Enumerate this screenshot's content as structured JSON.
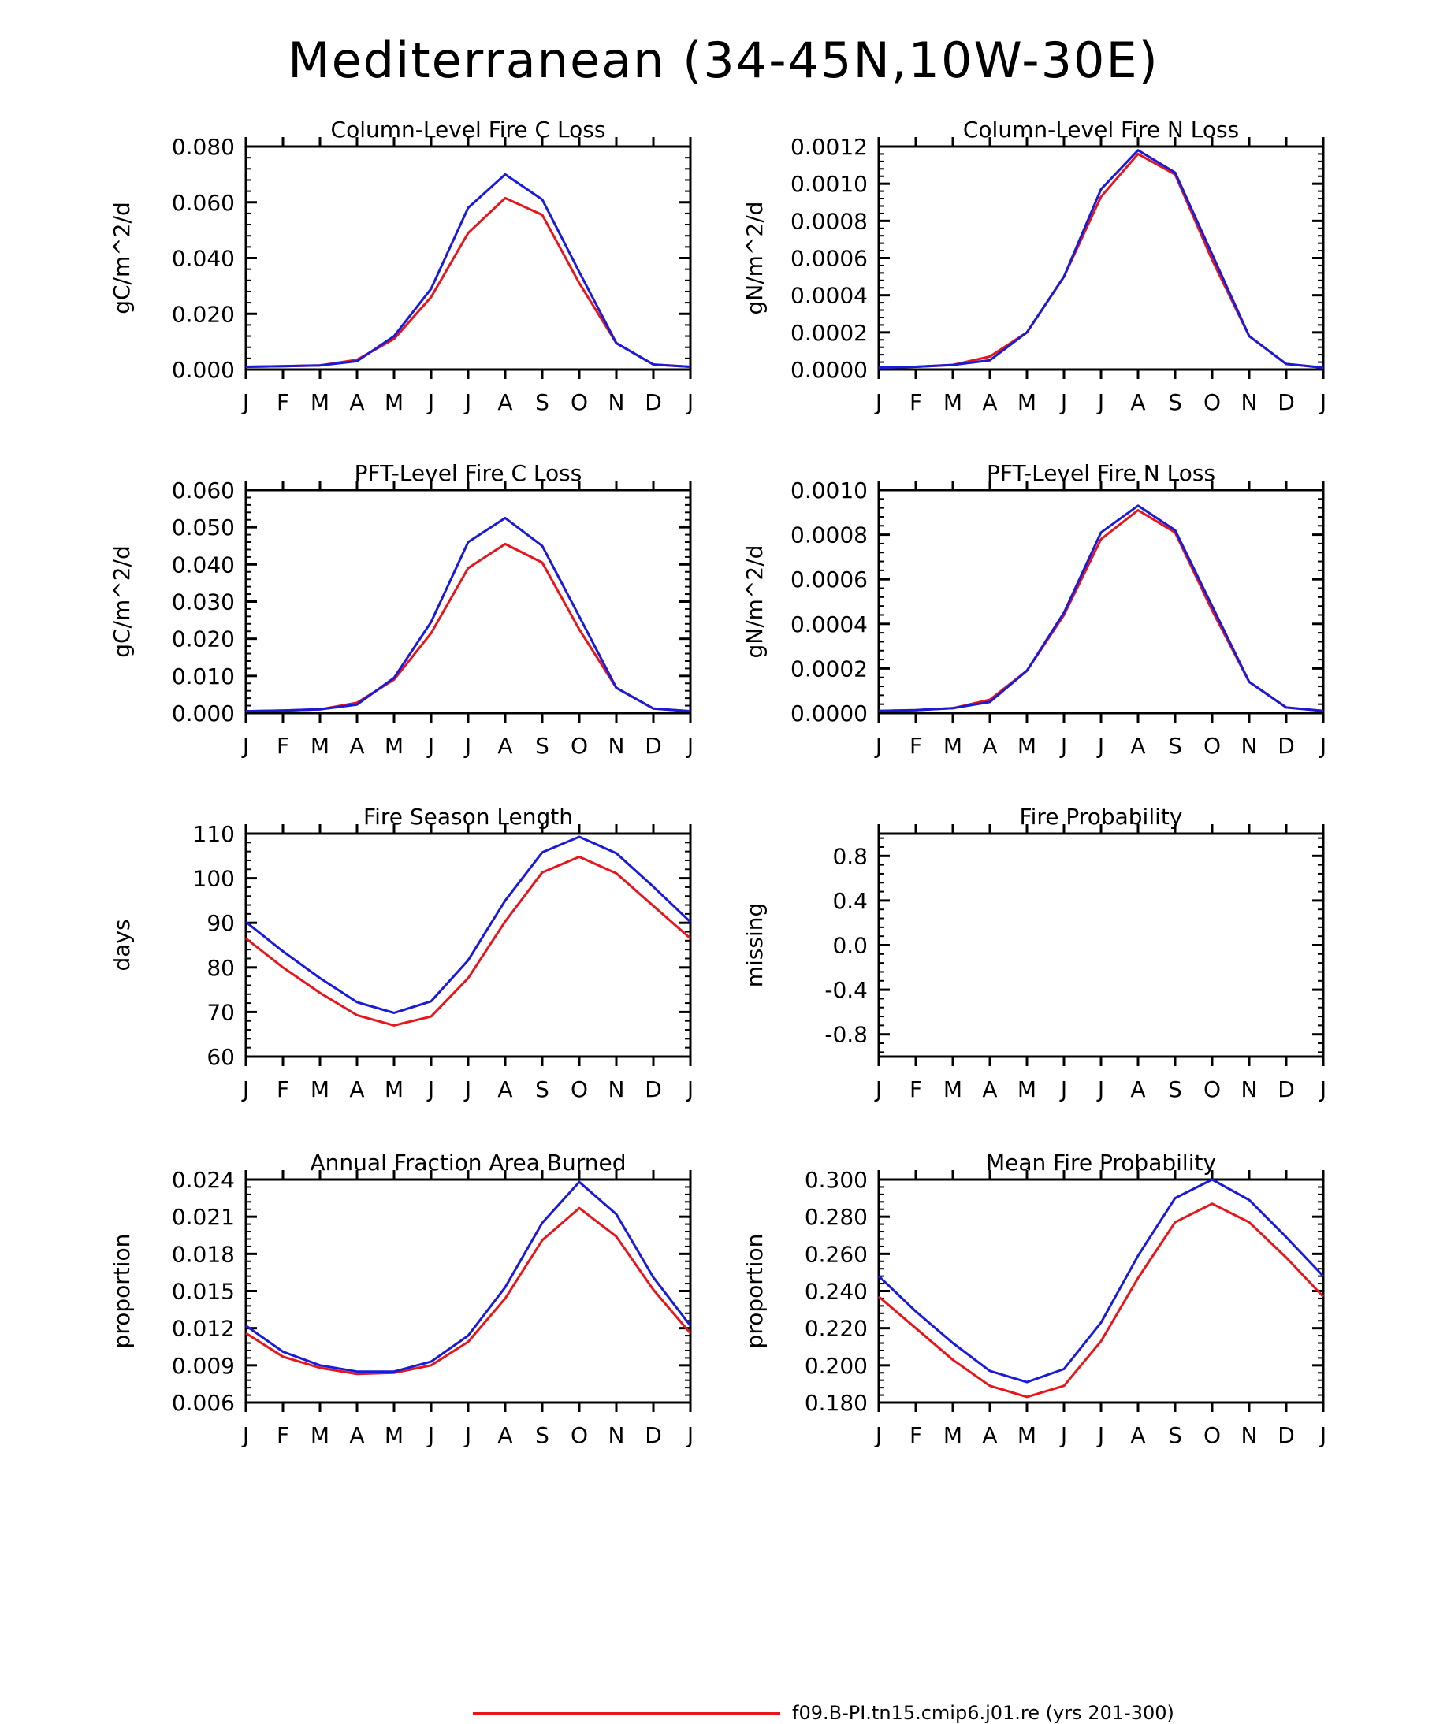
{
  "title": "Mediterranean (34-45N,10W-30E)",
  "colors": {
    "series1": "#e8161a",
    "series2": "#1a1adb",
    "axis": "#000000"
  },
  "legend": [
    {
      "label": "f09.B-PI.tn15.cmip6.j01.re (yrs 201-300)",
      "color": "#e8161a"
    }
  ],
  "chart_data": [
    {
      "type": "line",
      "title": "Column-Level Fire C Loss",
      "ylabel": "gC/m^2/d",
      "categories": [
        "J",
        "F",
        "M",
        "A",
        "M",
        "J",
        "J",
        "A",
        "S",
        "O",
        "N",
        "D",
        "J"
      ],
      "ylim": [
        0,
        0.08
      ],
      "yticks": [
        "0.000",
        "0.020",
        "0.040",
        "0.060",
        "0.080"
      ],
      "series": [
        {
          "values": [
            0.001,
            0.0012,
            0.0015,
            0.0035,
            0.011,
            0.026,
            0.049,
            0.0615,
            0.0555,
            0.031,
            0.0095,
            0.0018,
            0.001
          ]
        },
        {
          "values": [
            0.001,
            0.0012,
            0.0015,
            0.003,
            0.012,
            0.029,
            0.058,
            0.07,
            0.061,
            0.035,
            0.0095,
            0.0018,
            0.001
          ]
        }
      ]
    },
    {
      "type": "line",
      "title": "Column-Level Fire N Loss",
      "ylabel": "gN/m^2/d",
      "categories": [
        "J",
        "F",
        "M",
        "A",
        "M",
        "J",
        "J",
        "A",
        "S",
        "O",
        "N",
        "D",
        "J"
      ],
      "ylim": [
        0,
        0.0012
      ],
      "yticks": [
        "0.0000",
        "0.0002",
        "0.0004",
        "0.0006",
        "0.0008",
        "0.0010",
        "0.0012"
      ],
      "series": [
        {
          "values": [
            1e-05,
            1.5e-05,
            2.5e-05,
            7e-05,
            0.0002,
            0.0005,
            0.00093,
            0.00116,
            0.00105,
            0.00059,
            0.00018,
            3e-05,
            1e-05
          ]
        },
        {
          "values": [
            1e-05,
            1.5e-05,
            2.5e-05,
            5e-05,
            0.0002,
            0.0005,
            0.00097,
            0.00118,
            0.00106,
            0.00062,
            0.00018,
            3e-05,
            1e-05
          ]
        }
      ]
    },
    {
      "type": "line",
      "title": "PFT-Level Fire C Loss",
      "ylabel": "gC/m^2/d",
      "categories": [
        "J",
        "F",
        "M",
        "A",
        "M",
        "J",
        "J",
        "A",
        "S",
        "O",
        "N",
        "D",
        "J"
      ],
      "ylim": [
        0,
        0.06
      ],
      "yticks": [
        "0.000",
        "0.010",
        "0.020",
        "0.030",
        "0.040",
        "0.050",
        "0.060"
      ],
      "series": [
        {
          "values": [
            0.0005,
            0.0007,
            0.001,
            0.0028,
            0.009,
            0.0215,
            0.039,
            0.0455,
            0.0405,
            0.0225,
            0.0068,
            0.0012,
            0.0005
          ]
        },
        {
          "values": [
            0.0005,
            0.0007,
            0.001,
            0.0023,
            0.0095,
            0.0245,
            0.046,
            0.0525,
            0.045,
            0.026,
            0.0068,
            0.0012,
            0.0005
          ]
        }
      ]
    },
    {
      "type": "line",
      "title": "PFT-Level Fire N Loss",
      "ylabel": "gN/m^2/d",
      "categories": [
        "J",
        "F",
        "M",
        "A",
        "M",
        "J",
        "J",
        "A",
        "S",
        "O",
        "N",
        "D",
        "J"
      ],
      "ylim": [
        0,
        0.001
      ],
      "yticks": [
        "0.0000",
        "0.0002",
        "0.0004",
        "0.0006",
        "0.0008",
        "0.0010"
      ],
      "series": [
        {
          "values": [
            1e-05,
            1.3e-05,
            2.2e-05,
            6e-05,
            0.00019,
            0.00044,
            0.00078,
            0.00091,
            0.00081,
            0.00046,
            0.00014,
            2.5e-05,
            1e-05
          ]
        },
        {
          "values": [
            1e-05,
            1.3e-05,
            2.2e-05,
            5e-05,
            0.00019,
            0.00045,
            0.00081,
            0.00093,
            0.00082,
            0.00048,
            0.00014,
            2.5e-05,
            1e-05
          ]
        }
      ]
    },
    {
      "type": "line",
      "title": "Fire Season Length",
      "ylabel": "days",
      "categories": [
        "J",
        "F",
        "M",
        "A",
        "M",
        "J",
        "J",
        "A",
        "S",
        "O",
        "N",
        "D",
        "J"
      ],
      "ylim": [
        60,
        110
      ],
      "yticks": [
        "60",
        "70",
        "80",
        "90",
        "100",
        "110"
      ],
      "series": [
        {
          "values": [
            86.5,
            80,
            74.3,
            69.3,
            67,
            69,
            77.6,
            90.3,
            101.3,
            104.8,
            101.1,
            93.8,
            86.5
          ]
        },
        {
          "values": [
            90.2,
            83.6,
            77.6,
            72.2,
            69.8,
            72.4,
            81.6,
            95,
            105.8,
            109.3,
            105.6,
            98.1,
            90.2
          ]
        }
      ]
    },
    {
      "type": "line",
      "title": "Fire Probability",
      "ylabel": "missing",
      "categories": [
        "J",
        "F",
        "M",
        "A",
        "M",
        "J",
        "J",
        "A",
        "S",
        "O",
        "N",
        "D",
        "J"
      ],
      "ylim": [
        -1,
        1
      ],
      "yticks": [
        "-0.8",
        "-0.4",
        "0.0",
        "0.4",
        "0.8"
      ],
      "series": []
    },
    {
      "type": "line",
      "title": "Annual Fraction Area Burned",
      "ylabel": "proportion",
      "categories": [
        "J",
        "F",
        "M",
        "A",
        "M",
        "J",
        "J",
        "A",
        "S",
        "O",
        "N",
        "D",
        "J"
      ],
      "ylim": [
        0.006,
        0.024
      ],
      "yticks": [
        "0.006",
        "0.009",
        "0.012",
        "0.015",
        "0.018",
        "0.021",
        "0.024"
      ],
      "series": [
        {
          "values": [
            0.0116,
            0.0097,
            0.0088,
            0.0083,
            0.0084,
            0.009,
            0.0109,
            0.0144,
            0.0191,
            0.0217,
            0.0194,
            0.0151,
            0.0116
          ]
        },
        {
          "values": [
            0.0122,
            0.0101,
            0.009,
            0.0085,
            0.0085,
            0.0093,
            0.0114,
            0.0153,
            0.0205,
            0.0238,
            0.0212,
            0.0161,
            0.0122
          ]
        }
      ]
    },
    {
      "type": "line",
      "title": "Mean Fire Probability",
      "ylabel": "proportion",
      "categories": [
        "J",
        "F",
        "M",
        "A",
        "M",
        "J",
        "J",
        "A",
        "S",
        "O",
        "N",
        "D",
        "J"
      ],
      "ylim": [
        0.18,
        0.3
      ],
      "yticks": [
        "0.180",
        "0.200",
        "0.220",
        "0.240",
        "0.260",
        "0.280",
        "0.300"
      ],
      "series": [
        {
          "values": [
            0.237,
            0.22,
            0.203,
            0.189,
            0.183,
            0.189,
            0.213,
            0.247,
            0.277,
            0.287,
            0.277,
            0.258,
            0.237
          ]
        },
        {
          "values": [
            0.248,
            0.229,
            0.212,
            0.197,
            0.191,
            0.198,
            0.223,
            0.259,
            0.29,
            0.3,
            0.289,
            0.269,
            0.248
          ]
        }
      ]
    }
  ]
}
